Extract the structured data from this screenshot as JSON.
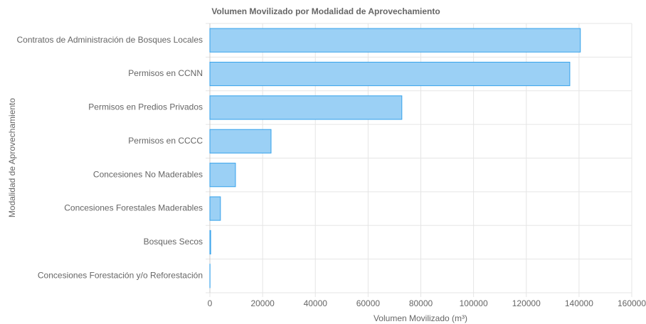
{
  "chart_data": {
    "type": "hbar",
    "title": "Volumen Movilizado por Modalidad de Aprovechamiento",
    "x_label": "Volumen Movilizado (m³)",
    "y_label": "Modalidad de Aprovechamiento",
    "categories": [
      "Contratos de Administración de Bosques Locales",
      "Permisos en CCNN",
      "Permisos en Predios Privados",
      "Permisos en CCCC",
      "Concesiones No Maderables",
      "Concesiones Forestales Maderables",
      "Bosques Secos",
      "Concesiones Forestación y/o Reforestación"
    ],
    "values": [
      140500,
      136500,
      72800,
      23200,
      9700,
      4000,
      300,
      50
    ],
    "color": "#9bd0f5",
    "border_color": "#36a2eb",
    "xlim": [
      0,
      160000
    ],
    "xticks": [
      0,
      20000,
      40000,
      60000,
      80000,
      100000,
      120000,
      140000,
      160000
    ],
    "grid": true
  }
}
